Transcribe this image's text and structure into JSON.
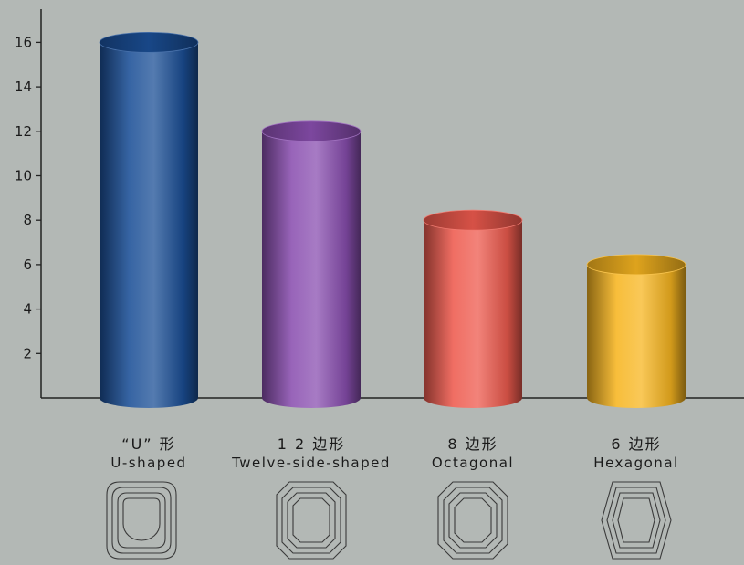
{
  "chart_data": {
    "type": "bar",
    "style": "3d-cylinder",
    "categories": [
      {
        "zh": "“U” 形",
        "en": "U-shaped",
        "color": "#1b4f96",
        "icon": "u-shape-outline-icon"
      },
      {
        "zh": "1 2 边形",
        "en": "Twelve-side-shaped",
        "color": "#8a4fb0",
        "icon": "twelve-side-outline-icon"
      },
      {
        "zh": "8 边形",
        "en": "Octagonal",
        "color": "#ee5a4e",
        "icon": "octagon-outline-icon"
      },
      {
        "zh": "6 边形",
        "en": "Hexagonal",
        "color": "#f7b520",
        "icon": "hexagon-outline-icon"
      }
    ],
    "values": [
      16,
      12,
      8,
      6
    ],
    "ylim": [
      0,
      17
    ],
    "yticks": [
      2,
      4,
      6,
      8,
      10,
      12,
      14,
      16
    ],
    "title": "",
    "xlabel": "",
    "ylabel": "",
    "grid": false,
    "legend": "none"
  }
}
